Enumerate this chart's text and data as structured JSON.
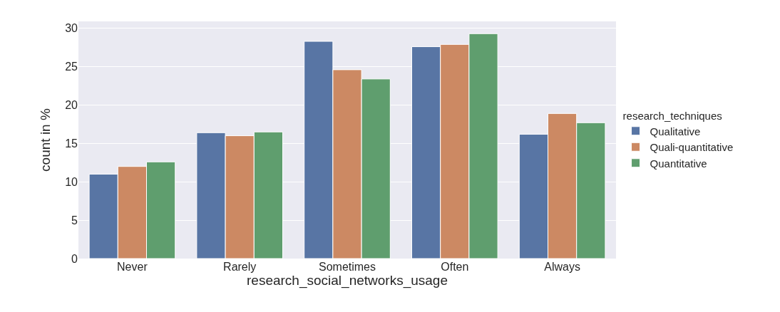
{
  "chart_data": {
    "type": "bar",
    "xlabel": "research_social_networks_usage",
    "ylabel": "count in %",
    "legend_title": "research_techniques",
    "categories": [
      "Never",
      "Rarely",
      "Sometimes",
      "Often",
      "Always"
    ],
    "series": [
      {
        "name": "Qualitative",
        "color": "#5875a4",
        "values": [
          11.0,
          16.4,
          28.3,
          27.6,
          16.2
        ]
      },
      {
        "name": "Quali-quantitative",
        "color": "#cc8963",
        "values": [
          12.0,
          16.0,
          24.6,
          27.9,
          18.9
        ]
      },
      {
        "name": "Quantitative",
        "color": "#5f9e6e",
        "values": [
          12.6,
          16.5,
          23.4,
          29.3,
          17.7
        ]
      }
    ],
    "ylim": [
      0,
      30.9
    ],
    "yticks": [
      0,
      5,
      10,
      15,
      20,
      25,
      30
    ],
    "grid": "y",
    "legend": "right"
  }
}
